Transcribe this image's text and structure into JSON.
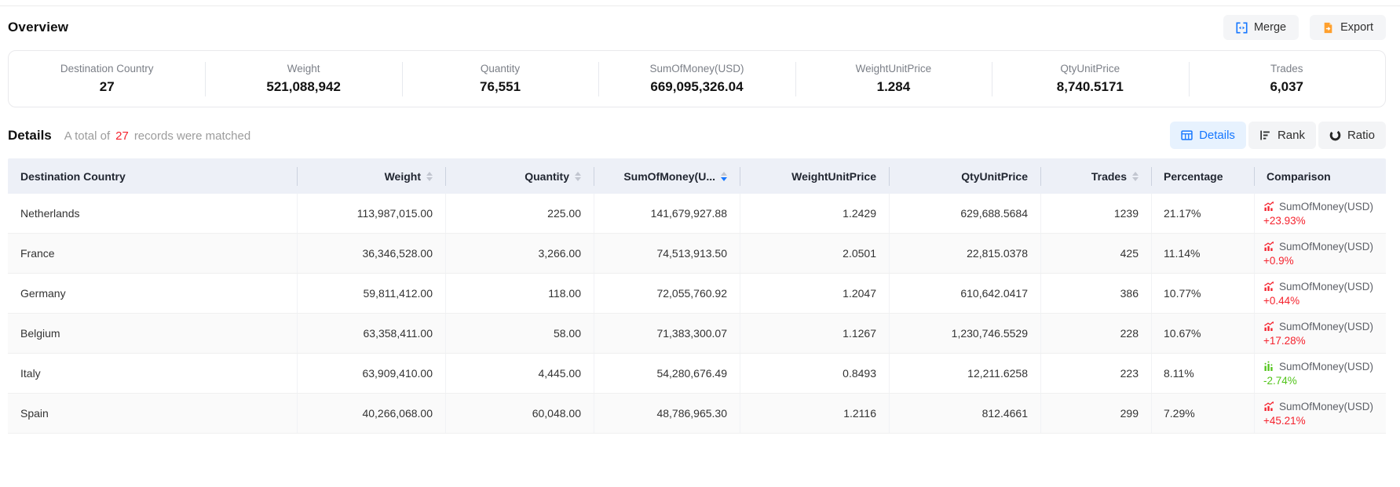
{
  "overview": {
    "title": "Overview",
    "stats": [
      {
        "label": "Destination Country",
        "value": "27"
      },
      {
        "label": "Weight",
        "value": "521,088,942"
      },
      {
        "label": "Quantity",
        "value": "76,551"
      },
      {
        "label": "SumOfMoney(USD)",
        "value": "669,095,326.04"
      },
      {
        "label": "WeightUnitPrice",
        "value": "1.284"
      },
      {
        "label": "QtyUnitPrice",
        "value": "8,740.5171"
      },
      {
        "label": "Trades",
        "value": "6,037"
      }
    ]
  },
  "toolbar": {
    "merge_label": "Merge",
    "merge_icon": "merge-cells-icon",
    "export_label": "Export",
    "export_icon": "export-file-icon"
  },
  "details": {
    "title": "Details",
    "summary_prefix": "A total of",
    "record_count": "27",
    "summary_suffix": "records were matched",
    "tabs": [
      {
        "label": "Details",
        "icon": "table-grid-icon",
        "active": true
      },
      {
        "label": "Rank",
        "icon": "rank-bars-icon",
        "active": false
      },
      {
        "label": "Ratio",
        "icon": "ratio-donut-icon",
        "active": false
      }
    ]
  },
  "table": {
    "columns": [
      {
        "key": "country",
        "label": "Destination Country",
        "align": "left",
        "sortable": false,
        "sort": "none"
      },
      {
        "key": "weight",
        "label": "Weight",
        "align": "right",
        "sortable": true,
        "sort": "none"
      },
      {
        "key": "quantity",
        "label": "Quantity",
        "align": "right",
        "sortable": true,
        "sort": "none"
      },
      {
        "key": "sum_of_money",
        "label": "SumOfMoney(U...",
        "align": "right",
        "sortable": true,
        "sort": "desc"
      },
      {
        "key": "weight_unit_price",
        "label": "WeightUnitPrice",
        "align": "right",
        "sortable": false,
        "sort": "none"
      },
      {
        "key": "qty_unit_price",
        "label": "QtyUnitPrice",
        "align": "right",
        "sortable": false,
        "sort": "none"
      },
      {
        "key": "trades",
        "label": "Trades",
        "align": "right",
        "sortable": true,
        "sort": "none"
      },
      {
        "key": "percentage",
        "label": "Percentage",
        "align": "left",
        "sortable": false,
        "sort": "none"
      },
      {
        "key": "comparison",
        "label": "Comparison",
        "align": "left",
        "sortable": false,
        "sort": "none"
      }
    ],
    "rows": [
      {
        "country": "Netherlands",
        "weight": "113,987,015.00",
        "quantity": "225.00",
        "sum_of_money": "141,679,927.88",
        "weight_unit_price": "1.2429",
        "qty_unit_price": "629,688.5684",
        "trades": "1239",
        "percentage": "21.17%",
        "comparison": {
          "metric": "SumOfMoney(USD)",
          "change": "+23.93%",
          "trend": "up"
        }
      },
      {
        "country": "France",
        "weight": "36,346,528.00",
        "quantity": "3,266.00",
        "sum_of_money": "74,513,913.50",
        "weight_unit_price": "2.0501",
        "qty_unit_price": "22,815.0378",
        "trades": "425",
        "percentage": "11.14%",
        "comparison": {
          "metric": "SumOfMoney(USD)",
          "change": "+0.9%",
          "trend": "up"
        }
      },
      {
        "country": "Germany",
        "weight": "59,811,412.00",
        "quantity": "118.00",
        "sum_of_money": "72,055,760.92",
        "weight_unit_price": "1.2047",
        "qty_unit_price": "610,642.0417",
        "trades": "386",
        "percentage": "10.77%",
        "comparison": {
          "metric": "SumOfMoney(USD)",
          "change": "+0.44%",
          "trend": "up"
        }
      },
      {
        "country": "Belgium",
        "weight": "63,358,411.00",
        "quantity": "58.00",
        "sum_of_money": "71,383,300.07",
        "weight_unit_price": "1.1267",
        "qty_unit_price": "1,230,746.5529",
        "trades": "228",
        "percentage": "10.67%",
        "comparison": {
          "metric": "SumOfMoney(USD)",
          "change": "+17.28%",
          "trend": "up"
        }
      },
      {
        "country": "Italy",
        "weight": "63,909,410.00",
        "quantity": "4,445.00",
        "sum_of_money": "54,280,676.49",
        "weight_unit_price": "0.8493",
        "qty_unit_price": "12,211.6258",
        "trades": "223",
        "percentage": "8.11%",
        "comparison": {
          "metric": "SumOfMoney(USD)",
          "change": "-2.74%",
          "trend": "down"
        }
      },
      {
        "country": "Spain",
        "weight": "40,266,068.00",
        "quantity": "60,048.00",
        "sum_of_money": "48,786,965.30",
        "weight_unit_price": "1.2116",
        "qty_unit_price": "812.4661",
        "trades": "299",
        "percentage": "7.29%",
        "comparison": {
          "metric": "SumOfMoney(USD)",
          "change": "+45.21%",
          "trend": "up"
        }
      }
    ]
  },
  "colors": {
    "accent_blue": "#1677ff",
    "up_red": "#f5222d",
    "down_green": "#52c41a",
    "export_orange": "#ffa02e",
    "header_bg": "#edf0f7"
  }
}
